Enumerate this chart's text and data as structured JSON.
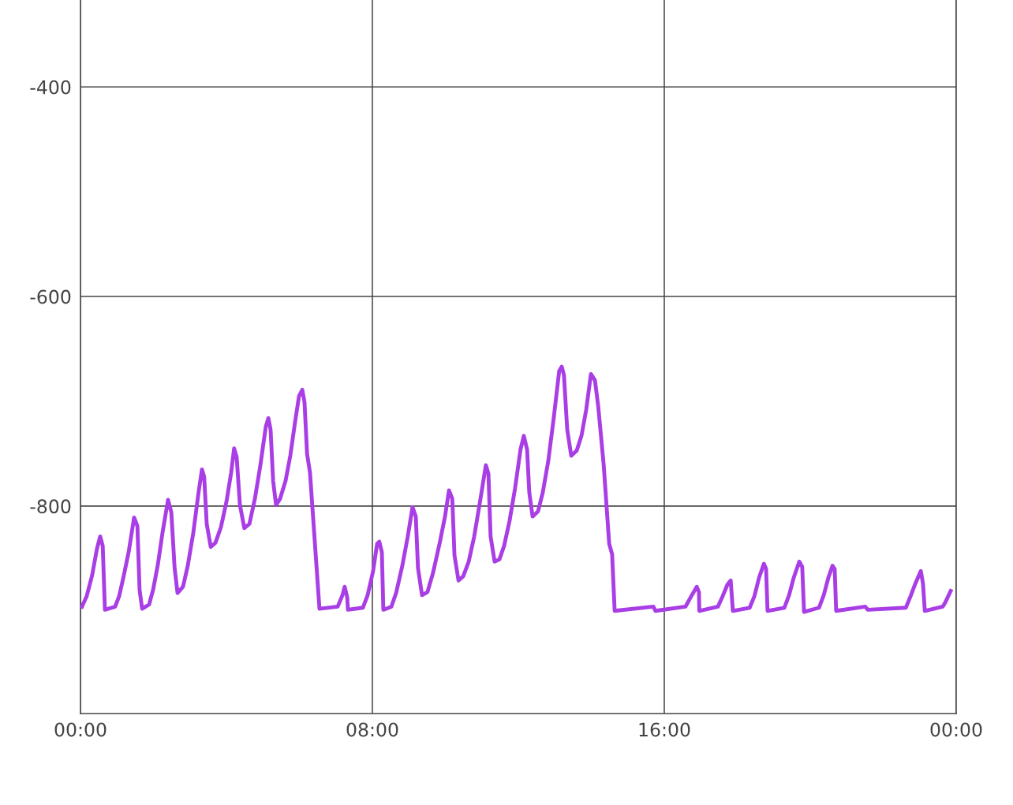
{
  "chart_data": {
    "type": "line",
    "xlim": [
      0,
      24
    ],
    "ylim": [
      -998,
      -317
    ],
    "xticks": [
      {
        "value": 0,
        "label": "00:00"
      },
      {
        "value": 8,
        "label": "08:00"
      },
      {
        "value": 16,
        "label": "16:00"
      },
      {
        "value": 24,
        "label": "00:00"
      }
    ],
    "yticks": [
      {
        "value": -400,
        "label": "-400"
      },
      {
        "value": -600,
        "label": "-600"
      },
      {
        "value": -800,
        "label": "-800"
      }
    ],
    "grid": true,
    "marker": "none",
    "line_style": "solid",
    "series": [
      {
        "color": "#a93de6",
        "x": [
          0.04,
          0.17,
          0.32,
          0.45,
          0.54,
          0.61,
          0.67,
          0.95,
          1.06,
          1.19,
          1.32,
          1.47,
          1.56,
          1.62,
          1.69,
          1.88,
          1.99,
          2.12,
          2.25,
          2.4,
          2.49,
          2.58,
          2.66,
          2.81,
          2.94,
          3.09,
          3.24,
          3.33,
          3.39,
          3.46,
          3.57,
          3.7,
          3.85,
          4.0,
          4.13,
          4.21,
          4.28,
          4.37,
          4.49,
          4.63,
          4.78,
          4.93,
          5.08,
          5.15,
          5.21,
          5.28,
          5.36,
          5.47,
          5.62,
          5.75,
          5.88,
          5.99,
          6.08,
          6.14,
          6.21,
          6.29,
          6.55,
          7.05,
          7.18,
          7.24,
          7.31,
          7.33,
          7.74,
          7.87,
          8.02,
          8.13,
          8.19,
          8.26,
          8.3,
          8.52,
          8.65,
          8.82,
          8.97,
          9.1,
          9.19,
          9.25,
          9.36,
          9.51,
          9.66,
          9.84,
          9.99,
          10.1,
          10.19,
          10.25,
          10.36,
          10.49,
          10.64,
          10.79,
          10.94,
          11.11,
          11.18,
          11.24,
          11.35,
          11.48,
          11.61,
          11.76,
          11.91,
          12.06,
          12.15,
          12.24,
          12.3,
          12.39,
          12.54,
          12.67,
          12.82,
          12.97,
          13.12,
          13.19,
          13.25,
          13.34,
          13.45,
          13.6,
          13.73,
          13.86,
          13.99,
          14.1,
          14.19,
          14.34,
          14.49,
          14.57,
          14.64,
          15.7,
          15.76,
          16.58,
          16.74,
          16.89,
          16.95,
          16.96,
          17.47,
          17.6,
          17.73,
          17.82,
          17.88,
          18.34,
          18.47,
          18.6,
          18.73,
          18.79,
          18.83,
          19.29,
          19.42,
          19.55,
          19.7,
          19.78,
          19.83,
          20.24,
          20.37,
          20.5,
          20.61,
          20.67,
          20.71,
          21.51,
          21.58,
          22.62,
          22.75,
          22.88,
          23.03,
          23.09,
          23.14,
          23.63,
          23.7,
          23.85
        ],
        "values": [
          -896,
          -886,
          -866,
          -841,
          -829,
          -838,
          -899,
          -896,
          -886,
          -866,
          -844,
          -811,
          -819,
          -880,
          -898,
          -894,
          -880,
          -856,
          -825,
          -794,
          -806,
          -859,
          -883,
          -877,
          -857,
          -826,
          -786,
          -765,
          -772,
          -817,
          -839,
          -835,
          -820,
          -796,
          -768,
          -745,
          -753,
          -799,
          -821,
          -817,
          -793,
          -761,
          -724,
          -716,
          -727,
          -776,
          -799,
          -793,
          -776,
          -752,
          -720,
          -695,
          -689,
          -701,
          -750,
          -768,
          -898,
          -896,
          -885,
          -877,
          -887,
          -899,
          -897,
          -885,
          -862,
          -836,
          -834,
          -844,
          -899,
          -896,
          -883,
          -857,
          -829,
          -801,
          -810,
          -859,
          -885,
          -882,
          -864,
          -836,
          -810,
          -785,
          -793,
          -847,
          -871,
          -867,
          -853,
          -829,
          -798,
          -761,
          -769,
          -829,
          -853,
          -851,
          -838,
          -814,
          -783,
          -746,
          -733,
          -746,
          -787,
          -810,
          -805,
          -787,
          -757,
          -716,
          -671,
          -667,
          -675,
          -727,
          -752,
          -747,
          -733,
          -708,
          -674,
          -680,
          -705,
          -761,
          -836,
          -846,
          -900,
          -896,
          -900,
          -896,
          -886,
          -877,
          -882,
          -900,
          -896,
          -886,
          -875,
          -871,
          -900,
          -897,
          -886,
          -868,
          -855,
          -860,
          -900,
          -897,
          -885,
          -868,
          -853,
          -858,
          -901,
          -897,
          -885,
          -868,
          -857,
          -860,
          -900,
          -896,
          -899,
          -897,
          -886,
          -874,
          -862,
          -874,
          -900,
          -896,
          -892,
          -881
        ]
      }
    ]
  }
}
